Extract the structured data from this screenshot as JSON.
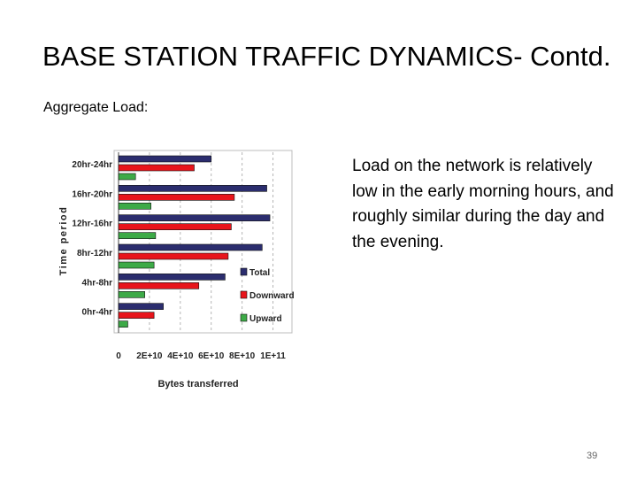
{
  "slide": {
    "title": "BASE STATION TRAFFIC DYNAMICS- Contd.",
    "subtitle": "Aggregate Load:",
    "description": "Load on the network is relatively low in the early morning hours, and roughly similar during the day and the evening.",
    "page_number": "39"
  },
  "chart_data": {
    "type": "bar",
    "orientation": "horizontal",
    "categories": [
      "0hr-4hr",
      "4hr-8hr",
      "8hr-12hr",
      "12hr-16hr",
      "16hr-20hr",
      "20hr-24hr"
    ],
    "series": [
      {
        "name": "Total",
        "color": "#2b2d6e",
        "values": [
          29000000000.0,
          69000000000.0,
          93000000000.0,
          98000000000.0,
          96000000000.0,
          60000000000.0
        ]
      },
      {
        "name": "Downward",
        "color": "#e8141b",
        "values": [
          23000000000.0,
          52000000000.0,
          71000000000.0,
          73000000000.0,
          75000000000.0,
          49000000000.0
        ]
      },
      {
        "name": "Upward",
        "color": "#3daa47",
        "values": [
          6000000000.0,
          17000000000.0,
          23000000000.0,
          24000000000.0,
          21000000000.0,
          11000000000.0
        ]
      }
    ],
    "xlabel": "Bytes transferred",
    "ylabel": "Time period",
    "xlim": [
      0,
      110000000000.0
    ],
    "x_ticks": [
      "0",
      "2E+10",
      "4E+10",
      "6E+10",
      "8E+10",
      "1E+11"
    ],
    "x_tick_values": [
      0,
      20000000000.0,
      40000000000.0,
      60000000000.0,
      80000000000.0,
      100000000000.0
    ],
    "grid": "vertical dashed",
    "legend_position": "bottom-right"
  }
}
